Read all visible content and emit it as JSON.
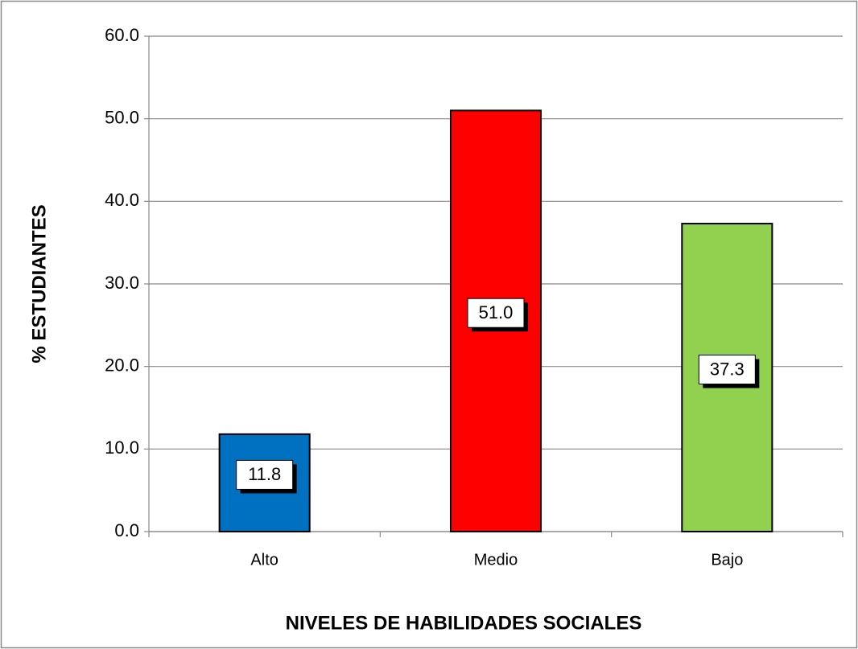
{
  "chart_data": {
    "type": "bar",
    "x_label": "NIVELES DE HABILIDADES SOCIALES",
    "y_label": "% ESTUDIANTES",
    "categories": [
      "Alto",
      "Medio",
      "Bajo"
    ],
    "values": [
      11.8,
      51.0,
      37.3
    ],
    "value_labels": [
      "11.8",
      "51.0",
      "37.3"
    ],
    "colors": [
      "#0070c0",
      "#ff0000",
      "#92d050"
    ],
    "ylim": [
      0,
      60
    ],
    "yticks": [
      {
        "value": 0,
        "label": "0.0"
      },
      {
        "value": 10,
        "label": "10.0"
      },
      {
        "value": 20,
        "label": "20.0"
      },
      {
        "value": 30,
        "label": "30.0"
      },
      {
        "value": 40,
        "label": "40.0"
      },
      {
        "value": 50,
        "label": "50.0"
      },
      {
        "value": 60,
        "label": "60.0"
      }
    ],
    "grid": true
  }
}
